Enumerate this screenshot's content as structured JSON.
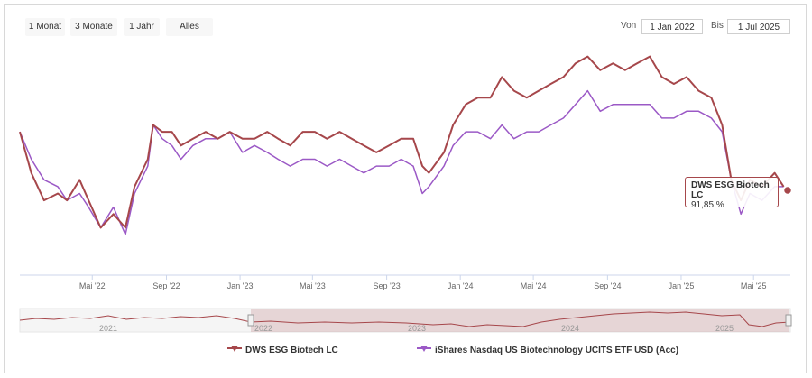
{
  "range_buttons": [
    {
      "label": "1 Monat"
    },
    {
      "label": "3 Monate"
    },
    {
      "label": "1 Jahr"
    },
    {
      "label": "Alles"
    }
  ],
  "date_range": {
    "from_label": "Von",
    "from_value": "1 Jan 2022",
    "to_label": "Bis",
    "to_value": "1 Jul 2025"
  },
  "tooltip": {
    "series": "DWS ESG Biotech LC",
    "value": "91,85 %"
  },
  "legend": [
    {
      "name": "DWS ESG Biotech LC",
      "color": "#a6474b"
    },
    {
      "name": "iShares Nasdaq US Biotechnology UCITS ETF USD (Acc)",
      "color": "#9b59c6"
    }
  ],
  "navigator": {
    "year_labels": [
      "2021",
      "2022",
      "2023",
      "2024",
      "2025"
    ]
  },
  "chart_data": {
    "type": "line",
    "x_tick_labels": [
      "Mai '22",
      "Sep '22",
      "Jan '23",
      "Mai '23",
      "Sep '23",
      "Jan '24",
      "Mai '24",
      "Sep '24",
      "Jan '25",
      "Mai '25"
    ],
    "x_ticks": [
      "2022-05-01",
      "2022-09-01",
      "2023-01-01",
      "2023-05-01",
      "2023-09-01",
      "2024-01-01",
      "2024-05-01",
      "2024-09-01",
      "2025-01-01",
      "2025-05-01"
    ],
    "xlim": [
      "2022-01-01",
      "2025-07-01"
    ],
    "ylim": [
      80,
      112
    ],
    "grid": false,
    "legend_position": "bottom",
    "series": [
      {
        "name": "DWS ESG Biotech LC",
        "color": "#a6474b",
        "points": [
          [
            "2022-01-01",
            100
          ],
          [
            "2022-01-20",
            94
          ],
          [
            "2022-02-10",
            90
          ],
          [
            "2022-03-05",
            91
          ],
          [
            "2022-03-20",
            90
          ],
          [
            "2022-04-10",
            93
          ],
          [
            "2022-04-25",
            90
          ],
          [
            "2022-05-15",
            86
          ],
          [
            "2022-06-05",
            88
          ],
          [
            "2022-06-25",
            86
          ],
          [
            "2022-07-10",
            92
          ],
          [
            "2022-08-01",
            96
          ],
          [
            "2022-08-10",
            101
          ],
          [
            "2022-08-25",
            100
          ],
          [
            "2022-09-10",
            100
          ],
          [
            "2022-09-25",
            98
          ],
          [
            "2022-10-15",
            99
          ],
          [
            "2022-11-05",
            100
          ],
          [
            "2022-11-25",
            99
          ],
          [
            "2022-12-15",
            100
          ],
          [
            "2023-01-05",
            99
          ],
          [
            "2023-01-25",
            99
          ],
          [
            "2023-02-15",
            100
          ],
          [
            "2023-03-05",
            99
          ],
          [
            "2023-03-25",
            98
          ],
          [
            "2023-04-15",
            100
          ],
          [
            "2023-05-05",
            100
          ],
          [
            "2023-05-25",
            99
          ],
          [
            "2023-06-15",
            100
          ],
          [
            "2023-07-05",
            99
          ],
          [
            "2023-07-25",
            98
          ],
          [
            "2023-08-15",
            97
          ],
          [
            "2023-09-05",
            98
          ],
          [
            "2023-09-25",
            99
          ],
          [
            "2023-10-15",
            99
          ],
          [
            "2023-10-30",
            95
          ],
          [
            "2023-11-10",
            94
          ],
          [
            "2023-12-05",
            97
          ],
          [
            "2023-12-20",
            101
          ],
          [
            "2024-01-10",
            104
          ],
          [
            "2024-01-30",
            105
          ],
          [
            "2024-02-20",
            105
          ],
          [
            "2024-03-10",
            108
          ],
          [
            "2024-03-30",
            106
          ],
          [
            "2024-04-20",
            105
          ],
          [
            "2024-05-10",
            106
          ],
          [
            "2024-05-30",
            107
          ],
          [
            "2024-06-20",
            108
          ],
          [
            "2024-07-10",
            110
          ],
          [
            "2024-07-30",
            111
          ],
          [
            "2024-08-20",
            109
          ],
          [
            "2024-09-10",
            110
          ],
          [
            "2024-09-30",
            109
          ],
          [
            "2024-10-20",
            110
          ],
          [
            "2024-11-10",
            111
          ],
          [
            "2024-11-30",
            108
          ],
          [
            "2024-12-20",
            107
          ],
          [
            "2025-01-10",
            108
          ],
          [
            "2025-01-30",
            106
          ],
          [
            "2025-02-20",
            105
          ],
          [
            "2025-03-10",
            101
          ],
          [
            "2025-03-25",
            93
          ],
          [
            "2025-04-10",
            90
          ],
          [
            "2025-04-25",
            93
          ],
          [
            "2025-05-15",
            92
          ],
          [
            "2025-06-05",
            94
          ],
          [
            "2025-06-20",
            92
          ]
        ]
      },
      {
        "name": "iShares Nasdaq US Biotechnology UCITS ETF USD (Acc)",
        "color": "#9b59c6",
        "points": [
          [
            "2022-01-01",
            100
          ],
          [
            "2022-01-20",
            96
          ],
          [
            "2022-02-10",
            93
          ],
          [
            "2022-03-05",
            92
          ],
          [
            "2022-03-20",
            90
          ],
          [
            "2022-04-10",
            91
          ],
          [
            "2022-04-25",
            89
          ],
          [
            "2022-05-15",
            86
          ],
          [
            "2022-06-05",
            89
          ],
          [
            "2022-06-25",
            85
          ],
          [
            "2022-07-10",
            91
          ],
          [
            "2022-08-01",
            95
          ],
          [
            "2022-08-10",
            101
          ],
          [
            "2022-08-25",
            99
          ],
          [
            "2022-09-10",
            98
          ],
          [
            "2022-09-25",
            96
          ],
          [
            "2022-10-15",
            98
          ],
          [
            "2022-11-05",
            99
          ],
          [
            "2022-11-25",
            99
          ],
          [
            "2022-12-15",
            100
          ],
          [
            "2023-01-05",
            97
          ],
          [
            "2023-01-25",
            98
          ],
          [
            "2023-02-15",
            97
          ],
          [
            "2023-03-05",
            96
          ],
          [
            "2023-03-25",
            95
          ],
          [
            "2023-04-15",
            96
          ],
          [
            "2023-05-05",
            96
          ],
          [
            "2023-05-25",
            95
          ],
          [
            "2023-06-15",
            96
          ],
          [
            "2023-07-05",
            95
          ],
          [
            "2023-07-25",
            94
          ],
          [
            "2023-08-15",
            95
          ],
          [
            "2023-09-05",
            95
          ],
          [
            "2023-09-25",
            96
          ],
          [
            "2023-10-15",
            95
          ],
          [
            "2023-10-30",
            91
          ],
          [
            "2023-11-10",
            92
          ],
          [
            "2023-12-05",
            95
          ],
          [
            "2023-12-20",
            98
          ],
          [
            "2024-01-10",
            100
          ],
          [
            "2024-01-30",
            100
          ],
          [
            "2024-02-20",
            99
          ],
          [
            "2024-03-10",
            101
          ],
          [
            "2024-03-30",
            99
          ],
          [
            "2024-04-20",
            100
          ],
          [
            "2024-05-10",
            100
          ],
          [
            "2024-05-30",
            101
          ],
          [
            "2024-06-20",
            102
          ],
          [
            "2024-07-10",
            104
          ],
          [
            "2024-07-30",
            106
          ],
          [
            "2024-08-20",
            103
          ],
          [
            "2024-09-10",
            104
          ],
          [
            "2024-09-30",
            104
          ],
          [
            "2024-10-20",
            104
          ],
          [
            "2024-11-10",
            104
          ],
          [
            "2024-11-30",
            102
          ],
          [
            "2024-12-20",
            102
          ],
          [
            "2025-01-10",
            103
          ],
          [
            "2025-01-30",
            103
          ],
          [
            "2025-02-20",
            102
          ],
          [
            "2025-03-10",
            100
          ],
          [
            "2025-03-25",
            93
          ],
          [
            "2025-04-10",
            88
          ],
          [
            "2025-04-25",
            91
          ],
          [
            "2025-05-15",
            90
          ],
          [
            "2025-06-05",
            92
          ],
          [
            "2025-06-20",
            92
          ]
        ]
      }
    ]
  }
}
